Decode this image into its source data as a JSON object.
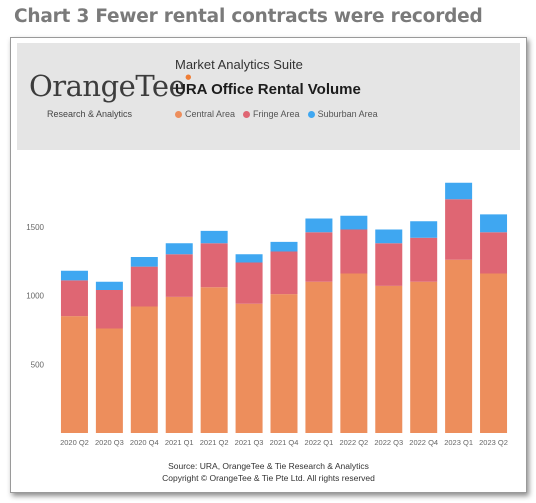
{
  "page": {
    "heading": "Chart 3 Fewer rental contracts were recorded"
  },
  "banner": {
    "logo_main": "OrangeTee",
    "logo_accent": "e",
    "logo_sub": "Research & Analytics",
    "suite": "Market Analytics Suite"
  },
  "footer": {
    "source": "Source: URA, OrangeTee & Tie Research & Analytics",
    "copyright": "Copyright © OrangeTee & Tie Pte Ltd. All rights reserved"
  },
  "colors": {
    "central": "#ed8e5c",
    "fringe": "#df6673",
    "suburban": "#3fa7f1"
  },
  "chart_data": {
    "type": "bar",
    "stacked": true,
    "title": "URA Office Rental Volume",
    "xlabel": "",
    "ylabel": "",
    "categories": [
      "2020 Q2",
      "2020 Q3",
      "2020 Q4",
      "2021 Q1",
      "2021 Q2",
      "2021 Q3",
      "2021 Q4",
      "2022 Q1",
      "2022 Q2",
      "2022 Q3",
      "2022 Q4",
      "2023 Q1",
      "2023 Q2"
    ],
    "series": [
      {
        "name": "Central Area",
        "values": [
          850,
          760,
          920,
          990,
          1060,
          940,
          1010,
          1100,
          1160,
          1070,
          1100,
          1260,
          1160
        ]
      },
      {
        "name": "Fringe Area",
        "values": [
          260,
          280,
          290,
          310,
          320,
          300,
          310,
          360,
          320,
          310,
          320,
          440,
          300
        ]
      },
      {
        "name": "Suburban Area",
        "values": [
          70,
          60,
          70,
          80,
          90,
          60,
          70,
          100,
          100,
          100,
          120,
          120,
          130
        ]
      }
    ],
    "yticks": [
      500,
      1000,
      1500
    ],
    "ylim": [
      0,
      2200
    ],
    "legend_position": "top",
    "grid": false
  }
}
